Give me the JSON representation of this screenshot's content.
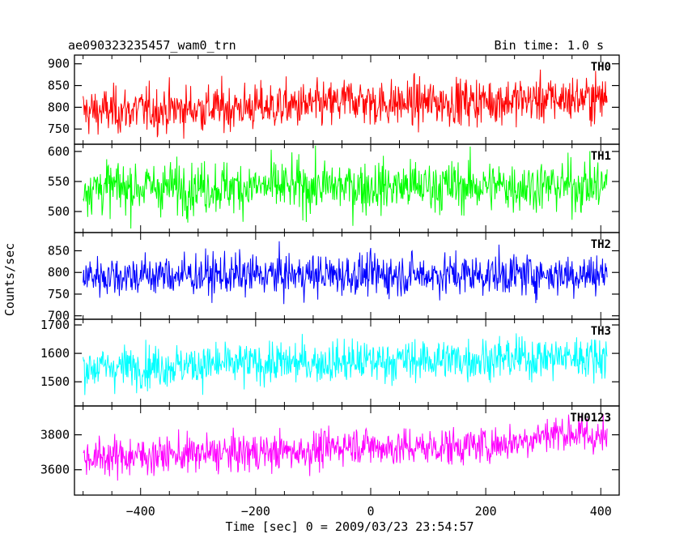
{
  "header": {
    "left_title": "ae090323235457_wam0_trn",
    "right_title": "Bin time: 1.0 s"
  },
  "chart_data": {
    "type": "line",
    "xlabel": "Time [sec] 0 = 2009/03/23 23:54:57",
    "ylabel": "Counts/sec",
    "xlim": [
      -515,
      432
    ],
    "x_ticks": [
      -400,
      -200,
      0,
      200,
      400
    ],
    "bin_time_s": 1.0,
    "x_start": -500,
    "x_end": 411,
    "panels": [
      {
        "name": "TH0",
        "color": "#ff0000",
        "ylim": [
          715,
          920
        ],
        "y_ticks": [
          750,
          800,
          850,
          900
        ],
        "mean_start": 790,
        "mean_end": 822,
        "amplitude": 42,
        "bumps": [
          [
            -30,
            25,
            12
          ]
        ]
      },
      {
        "name": "TH1",
        "color": "#00ff00",
        "ylim": [
          465,
          612
        ],
        "y_ticks": [
          500,
          550,
          600
        ],
        "mean_start": 540,
        "mean_end": 543,
        "amplitude": 34,
        "bumps": []
      },
      {
        "name": "TH2",
        "color": "#0000ff",
        "ylim": [
          692,
          892
        ],
        "y_ticks": [
          700,
          750,
          800,
          850
        ],
        "mean_start": 793,
        "mean_end": 796,
        "amplitude": 38,
        "bumps": []
      },
      {
        "name": "TH3",
        "color": "#00ffff",
        "ylim": [
          1415,
          1720
        ],
        "y_ticks": [
          1500,
          1600,
          1700
        ],
        "mean_start": 1550,
        "mean_end": 1590,
        "amplitude": 58,
        "bumps": []
      },
      {
        "name": "TH0123",
        "color": "#ff00ff",
        "ylim": [
          3455,
          3965
        ],
        "y_ticks": [
          3600,
          3800
        ],
        "mean_start": 3670,
        "mean_end": 3760,
        "amplitude": 85,
        "bumps": [
          [
            -30,
            40,
            30
          ],
          [
            330,
            70,
            60
          ]
        ]
      }
    ]
  }
}
